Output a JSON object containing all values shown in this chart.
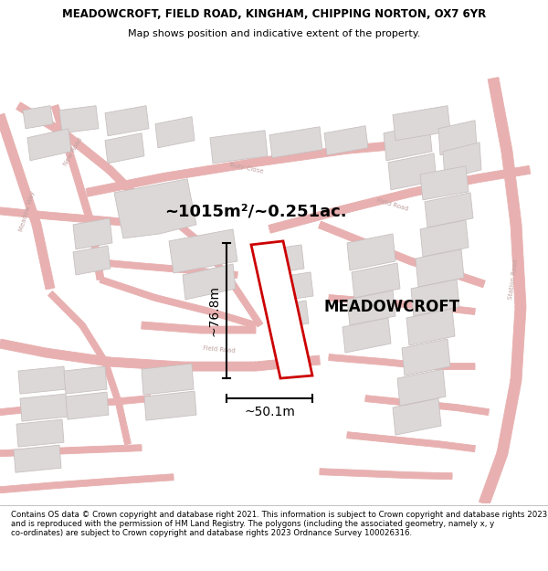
{
  "title_line1": "MEADOWCROFT, FIELD ROAD, KINGHAM, CHIPPING NORTON, OX7 6YR",
  "title_line2": "Map shows position and indicative extent of the property.",
  "copyright_text": "Contains OS data © Crown copyright and database right 2021. This information is subject to Crown copyright and database rights 2023 and is reproduced with the permission of HM Land Registry. The polygons (including the associated geometry, namely x, y co-ordinates) are subject to Crown copyright and database rights 2023 Ordnance Survey 100026316.",
  "property_name": "MEADOWCROFT",
  "area_text": "~1015m²/~0.251ac.",
  "dim_h": "~76.8m",
  "dim_w": "~50.1m",
  "map_bg": "#f7f2f2",
  "road_line_color": "#e8b0b0",
  "road_fill_color": "#f0e8e8",
  "building_color": "#ddd8d8",
  "building_edge": "#c8c0c0",
  "plot_color": "#cc0000",
  "title_fontsize": 8.5,
  "subtitle_fontsize": 8.0,
  "copyright_fontsize": 6.2,
  "road_label_color": "#c0a0a0",
  "road_label_size": 5.0
}
